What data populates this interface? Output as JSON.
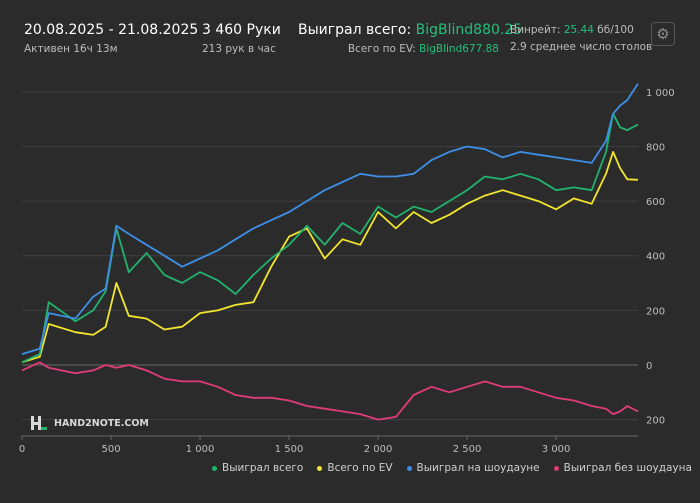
{
  "header": {
    "date_range": "20.08.2025 - 21.08.2025",
    "active": "Активен 16ч 13м",
    "hands": "3 460 Руки",
    "hands_per_hour": "213 рук в час",
    "won_label": "Выиграл всего:",
    "won_value": "BigBlind880.25",
    "ev_label": "Всего по EV:",
    "ev_value": "BigBlind677.88",
    "winrate_label": "Винрейт:",
    "winrate_value": "25.44",
    "winrate_unit": "бб/100",
    "tables": "2.9 среднее число столов"
  },
  "watermark": "HAND2NOTE.COM",
  "colors": {
    "won_total": "#21b36e",
    "ev": "#f2e52e",
    "showdown": "#3d8fe6",
    "no_showdown": "#e03c77",
    "accent": "#21c07a"
  },
  "chart_data": {
    "type": "line",
    "title": "",
    "xlabel": "",
    "ylabel": "",
    "xlim": [
      0,
      3460
    ],
    "ylim": [
      -260,
      1080
    ],
    "x_ticks": [
      0,
      500,
      1000,
      1500,
      2000,
      2500,
      3000
    ],
    "x_tick_labels": [
      "0",
      "500",
      "1 000",
      "1 500",
      "2 000",
      "2 500",
      "3 000"
    ],
    "y_ticks": [
      -200,
      0,
      200,
      400,
      600,
      800,
      1000
    ],
    "y_tick_labels": [
      "200",
      "0",
      "200",
      "400",
      "600",
      "800",
      "1 000"
    ],
    "grid": "horizontal",
    "legend_position": "bottom",
    "x": [
      0,
      100,
      150,
      300,
      400,
      470,
      530,
      600,
      700,
      800,
      900,
      1000,
      1100,
      1200,
      1300,
      1400,
      1500,
      1600,
      1700,
      1800,
      1900,
      2000,
      2100,
      2200,
      2300,
      2400,
      2500,
      2600,
      2700,
      2800,
      2900,
      3000,
      3100,
      3200,
      3280,
      3320,
      3360,
      3400,
      3460
    ],
    "series": [
      {
        "name": "Выиграл всего",
        "color": "#21b36e",
        "values": [
          10,
          40,
          230,
          160,
          200,
          270,
          500,
          340,
          410,
          330,
          300,
          340,
          310,
          260,
          330,
          390,
          440,
          510,
          440,
          520,
          480,
          580,
          540,
          580,
          560,
          600,
          640,
          690,
          680,
          700,
          680,
          640,
          650,
          640,
          780,
          920,
          870,
          860,
          880
        ]
      },
      {
        "name": "Всего по EV",
        "color": "#f2e52e",
        "values": [
          10,
          30,
          150,
          120,
          110,
          140,
          300,
          180,
          170,
          130,
          140,
          190,
          200,
          220,
          230,
          360,
          470,
          500,
          390,
          460,
          440,
          560,
          500,
          560,
          520,
          550,
          590,
          620,
          640,
          620,
          600,
          570,
          610,
          590,
          700,
          780,
          720,
          680,
          678
        ]
      },
      {
        "name": "Выиграл на шоудауне",
        "color": "#3d8fe6",
        "values": [
          40,
          60,
          190,
          170,
          250,
          280,
          510,
          480,
          440,
          400,
          360,
          390,
          420,
          460,
          500,
          530,
          560,
          600,
          640,
          670,
          700,
          690,
          690,
          700,
          750,
          780,
          800,
          790,
          760,
          780,
          770,
          760,
          750,
          740,
          820,
          920,
          950,
          970,
          1030
        ]
      },
      {
        "name": "Выиграл без шоудауна",
        "color": "#e03c77",
        "values": [
          -20,
          10,
          -10,
          -30,
          -20,
          0,
          -10,
          0,
          -20,
          -50,
          -60,
          -60,
          -80,
          -110,
          -120,
          -120,
          -130,
          -150,
          -160,
          -170,
          -180,
          -200,
          -190,
          -110,
          -80,
          -100,
          -80,
          -60,
          -80,
          -80,
          -100,
          -120,
          -130,
          -150,
          -160,
          -180,
          -170,
          -150,
          -170
        ]
      }
    ]
  }
}
